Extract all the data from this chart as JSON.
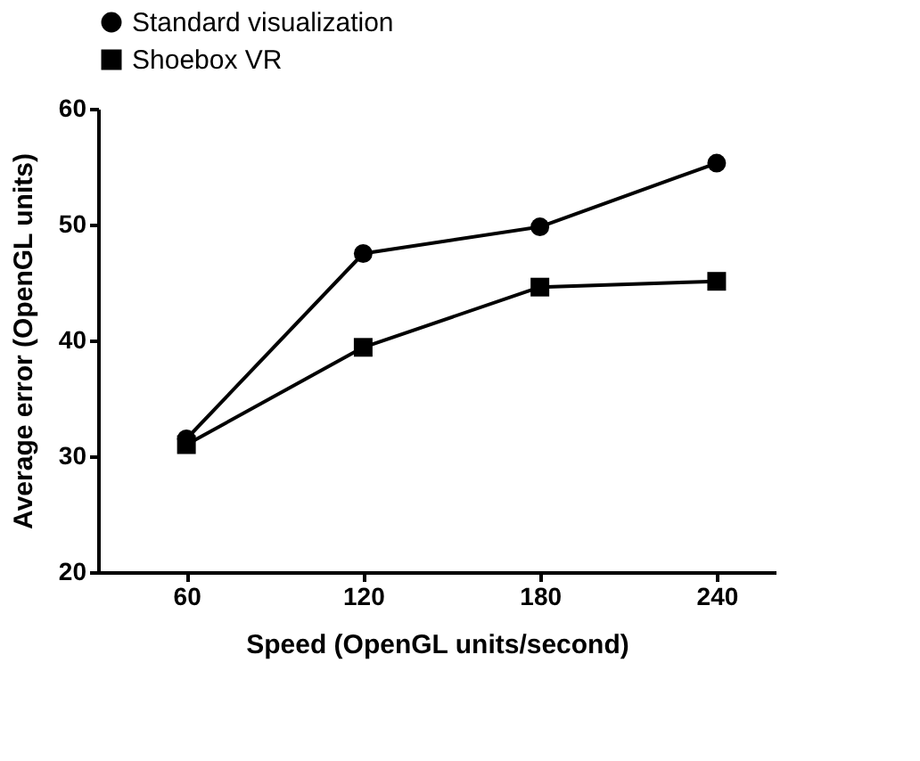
{
  "chart_data": {
    "type": "line",
    "xlabel": "Speed (OpenGL units/second)",
    "ylabel": "Average error (OpenGL units)",
    "x": [
      60,
      120,
      180,
      240
    ],
    "series": [
      {
        "name": "Standard visualization",
        "color": "#000000",
        "marker": "circle",
        "values": [
          31.5,
          47.5,
          49.8,
          55.3
        ]
      },
      {
        "name": "Shoebox VR",
        "color": "#000000",
        "marker": "square",
        "values": [
          31,
          39.4,
          44.6,
          45.1
        ]
      }
    ],
    "xlim": [
      30,
      260
    ],
    "xticks": [
      60,
      120,
      180,
      240
    ],
    "ylim": [
      20,
      60
    ],
    "yticks": [
      20,
      30,
      40,
      50,
      60
    ],
    "grid": false,
    "legend": "top"
  }
}
